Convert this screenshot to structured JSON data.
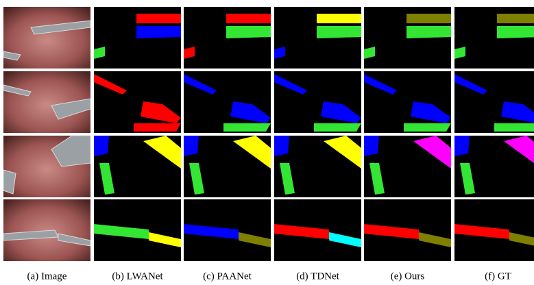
{
  "captions": [
    "(a) Image",
    "(b) LWANet",
    "(c) PAANet",
    "(d) TDNet",
    "(e) Ours",
    "(f) GT"
  ]
}
